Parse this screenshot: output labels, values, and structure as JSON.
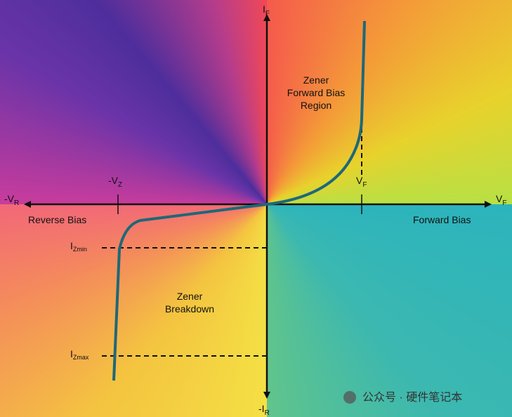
{
  "axes": {
    "y_pos": {
      "main": "I",
      "sub": "F"
    },
    "y_neg": {
      "main": "-I",
      "sub": "R"
    },
    "x_pos": {
      "main": "V",
      "sub": "F"
    },
    "x_neg": {
      "main": "-V",
      "sub": "R"
    }
  },
  "markers": {
    "vz": {
      "main": "-V",
      "sub": "Z"
    },
    "vf": {
      "main": "V",
      "sub": "F"
    },
    "izmin": {
      "main": "I",
      "sub": "Zmin"
    },
    "izmax": {
      "main": "I",
      "sub": "Zmax"
    }
  },
  "regions": {
    "forward": [
      "Zener",
      "Forward Bias",
      "Region"
    ],
    "breakdown": [
      "Zener",
      "Breakdown"
    ],
    "reverse_bias": "Reverse Bias",
    "forward_bias": "Forward Bias"
  },
  "watermark": "公众号 · 硬件笔记本"
}
